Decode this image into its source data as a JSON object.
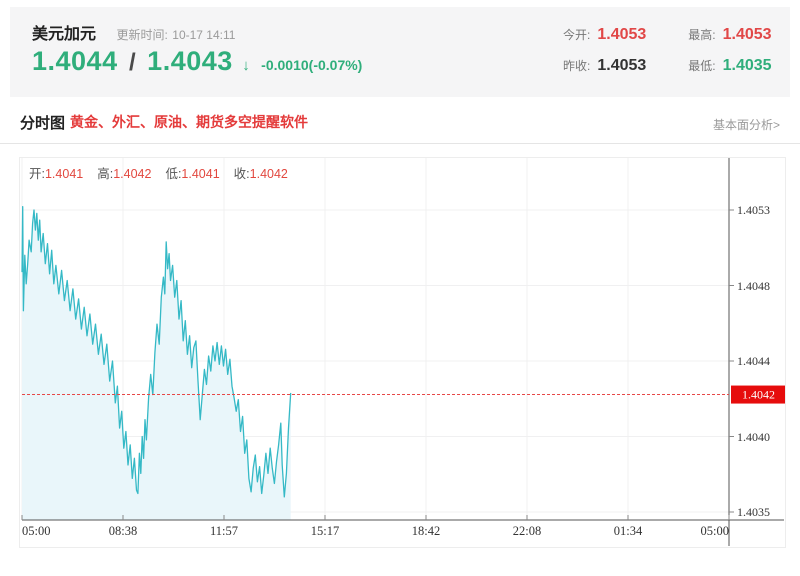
{
  "colors": {
    "green": "#2fae7b",
    "red_value": "#e14747",
    "dark_value": "#333333",
    "promo_red": "#e43b3b",
    "legend_value_red": "#e2483f"
  },
  "header": {
    "symbol": "美元加元",
    "update_label": "更新时间:",
    "update_time": "10-17 14:11",
    "bid": "1.4044",
    "separator": "/",
    "ask": "1.4043",
    "direction_icon": "↓",
    "change": "-0.0010(-0.07%)",
    "stats": [
      {
        "label": "今开:",
        "value": "1.4053",
        "color": "#e14747"
      },
      {
        "label": "最高:",
        "value": "1.4053",
        "color": "#e14747"
      },
      {
        "label": "昨收:",
        "value": "1.4053",
        "color": "#333333"
      },
      {
        "label": "最低:",
        "value": "1.4035",
        "color": "#2fae7b"
      }
    ]
  },
  "tabbar": {
    "tab": "分时图",
    "promo": "黄金、外汇、原油、期货多空提醒软件",
    "more_link": "基本面分析>"
  },
  "chart_data": {
    "type": "line",
    "title": "分时图 (USD/CAD intraday)",
    "legend": [
      {
        "label": "开:",
        "value": "1.4041"
      },
      {
        "label": "高:",
        "value": "1.4042"
      },
      {
        "label": "低:",
        "value": "1.4041"
      },
      {
        "label": "收:",
        "value": "1.4042"
      }
    ],
    "x_ticks": [
      "05:00",
      "08:38",
      "11:57",
      "15:17",
      "18:42",
      "22:08",
      "01:34",
      "05:00"
    ],
    "y_ticks": [
      "1.4053",
      "1.4048",
      "1.4044",
      "1.4040",
      "1.4035"
    ],
    "y_range": [
      1.4035,
      1.4053
    ],
    "current_price": "1.4042",
    "current_price_value": 1.4042,
    "colors": {
      "line": "#35b9c6",
      "fill": "#e9f6fa",
      "current_line": "#e64747",
      "current_badge": "#e60c0c",
      "grid": "#f0f0f1",
      "axis": "#555555",
      "tick": "#888888"
    },
    "series": [
      [
        0.0,
        1.40493
      ],
      [
        0.001,
        1.40532
      ],
      [
        0.002,
        1.4047
      ],
      [
        0.004,
        1.40503
      ],
      [
        0.006,
        1.40486
      ],
      [
        0.008,
        1.40498
      ],
      [
        0.01,
        1.40512
      ],
      [
        0.013,
        1.40505
      ],
      [
        0.015,
        1.40522
      ],
      [
        0.017,
        1.4053
      ],
      [
        0.019,
        1.40518
      ],
      [
        0.021,
        1.40528
      ],
      [
        0.023,
        1.40512
      ],
      [
        0.025,
        1.40524
      ],
      [
        0.027,
        1.40505
      ],
      [
        0.03,
        1.40516
      ],
      [
        0.033,
        1.40498
      ],
      [
        0.036,
        1.4051
      ],
      [
        0.039,
        1.40492
      ],
      [
        0.042,
        1.40506
      ],
      [
        0.045,
        1.40486
      ],
      [
        0.048,
        1.40497
      ],
      [
        0.052,
        1.4048
      ],
      [
        0.056,
        1.40494
      ],
      [
        0.06,
        1.40476
      ],
      [
        0.064,
        1.40488
      ],
      [
        0.068,
        1.4047
      ],
      [
        0.072,
        1.40483
      ],
      [
        0.076,
        1.40465
      ],
      [
        0.08,
        1.40477
      ],
      [
        0.084,
        1.40459
      ],
      [
        0.088,
        1.40472
      ],
      [
        0.092,
        1.40455
      ],
      [
        0.096,
        1.40468
      ],
      [
        0.1,
        1.4045
      ],
      [
        0.104,
        1.40462
      ],
      [
        0.108,
        1.40444
      ],
      [
        0.112,
        1.40456
      ],
      [
        0.116,
        1.40438
      ],
      [
        0.12,
        1.4045
      ],
      [
        0.124,
        1.40428
      ],
      [
        0.128,
        1.4044
      ],
      [
        0.132,
        1.40415
      ],
      [
        0.135,
        1.40425
      ],
      [
        0.138,
        1.404
      ],
      [
        0.141,
        1.4041
      ],
      [
        0.144,
        1.40388
      ],
      [
        0.147,
        1.40398
      ],
      [
        0.15,
        1.40378
      ],
      [
        0.153,
        1.4039
      ],
      [
        0.156,
        1.4037
      ],
      [
        0.159,
        1.40382
      ],
      [
        0.162,
        1.40363
      ],
      [
        0.164,
        1.40361
      ],
      [
        0.166,
        1.40385
      ],
      [
        0.168,
        1.40373
      ],
      [
        0.17,
        1.40395
      ],
      [
        0.172,
        1.40382
      ],
      [
        0.174,
        1.40405
      ],
      [
        0.176,
        1.40393
      ],
      [
        0.179,
        1.40418
      ],
      [
        0.182,
        1.40432
      ],
      [
        0.185,
        1.4042
      ],
      [
        0.188,
        1.40445
      ],
      [
        0.191,
        1.40462
      ],
      [
        0.194,
        1.4045
      ],
      [
        0.197,
        1.40478
      ],
      [
        0.2,
        1.4049
      ],
      [
        0.202,
        1.4048
      ],
      [
        0.204,
        1.40511
      ],
      [
        0.206,
        1.40495
      ],
      [
        0.208,
        1.40504
      ],
      [
        0.21,
        1.40488
      ],
      [
        0.213,
        1.40497
      ],
      [
        0.216,
        1.40478
      ],
      [
        0.219,
        1.40488
      ],
      [
        0.222,
        1.40465
      ],
      [
        0.225,
        1.40476
      ],
      [
        0.228,
        1.40452
      ],
      [
        0.231,
        1.40464
      ],
      [
        0.234,
        1.40444
      ],
      [
        0.237,
        1.40455
      ],
      [
        0.24,
        1.40436
      ],
      [
        0.243,
        1.40448
      ],
      [
        0.246,
        1.40452
      ],
      [
        0.249,
        1.40428
      ],
      [
        0.252,
        1.40405
      ],
      [
        0.255,
        1.4042
      ],
      [
        0.258,
        1.40435
      ],
      [
        0.261,
        1.40426
      ],
      [
        0.264,
        1.40443
      ],
      [
        0.267,
        1.40434
      ],
      [
        0.27,
        1.40449
      ],
      [
        0.273,
        1.4044
      ],
      [
        0.276,
        1.40451
      ],
      [
        0.279,
        1.40438
      ],
      [
        0.282,
        1.40449
      ],
      [
        0.285,
        1.40437
      ],
      [
        0.288,
        1.40447
      ],
      [
        0.291,
        1.40432
      ],
      [
        0.294,
        1.40441
      ],
      [
        0.297,
        1.40425
      ],
      [
        0.3,
        1.40418
      ],
      [
        0.303,
        1.4041
      ],
      [
        0.306,
        1.40417
      ],
      [
        0.309,
        1.40398
      ],
      [
        0.312,
        1.40407
      ],
      [
        0.315,
        1.40385
      ],
      [
        0.318,
        1.40393
      ],
      [
        0.321,
        1.4037
      ],
      [
        0.324,
        1.40362
      ],
      [
        0.327,
        1.40376
      ],
      [
        0.33,
        1.40384
      ],
      [
        0.333,
        1.40368
      ],
      [
        0.336,
        1.40377
      ],
      [
        0.339,
        1.40361
      ],
      [
        0.342,
        1.40372
      ],
      [
        0.345,
        1.40385
      ],
      [
        0.348,
        1.40373
      ],
      [
        0.351,
        1.40388
      ],
      [
        0.354,
        1.40376
      ],
      [
        0.357,
        1.40367
      ],
      [
        0.36,
        1.4038
      ],
      [
        0.363,
        1.4039
      ],
      [
        0.366,
        1.40403
      ],
      [
        0.368,
        1.40378
      ],
      [
        0.371,
        1.40359
      ],
      [
        0.374,
        1.40373
      ],
      [
        0.377,
        1.404
      ],
      [
        0.38,
        1.40421
      ]
    ]
  }
}
